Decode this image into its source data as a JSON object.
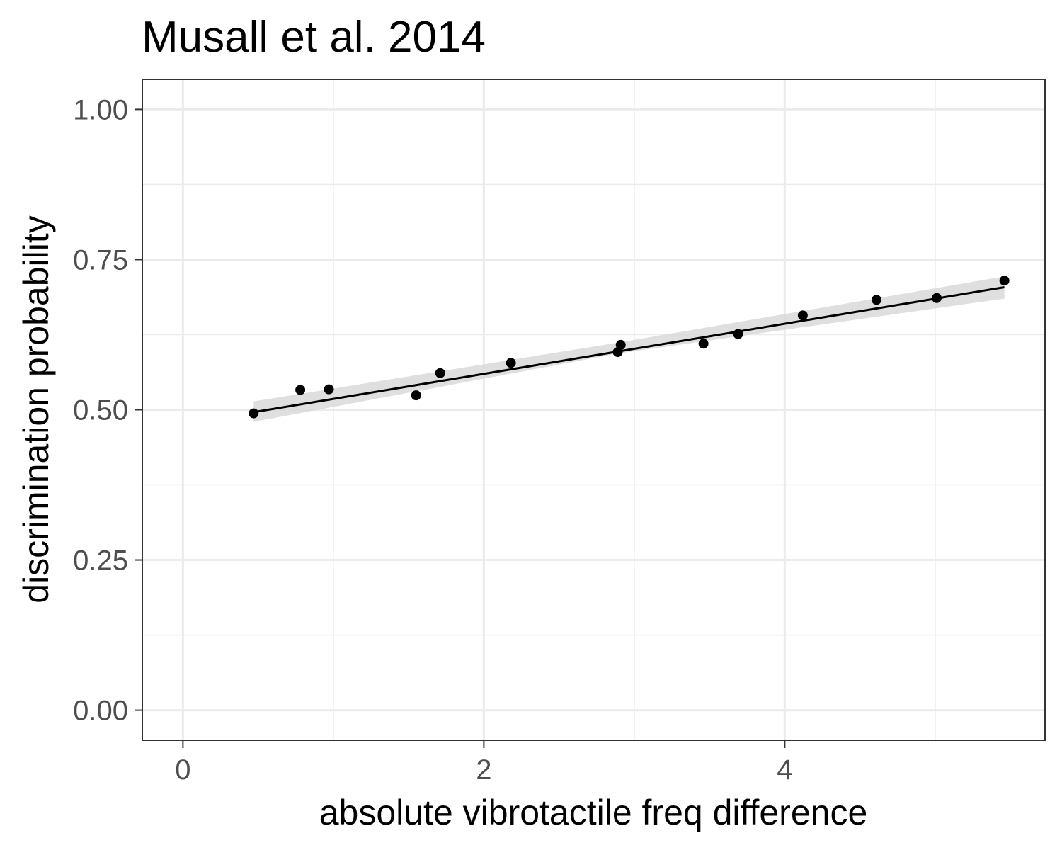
{
  "chart_data": {
    "type": "scatter",
    "title": "Musall et al. 2014",
    "xlabel": "absolute vibrotactile freq difference",
    "ylabel": "discrimination probability",
    "xlim": [
      -0.27,
      5.73
    ],
    "ylim": [
      -0.05,
      1.05
    ],
    "x_ticks": [
      {
        "value": 0,
        "label": "0"
      },
      {
        "value": 2,
        "label": "2"
      },
      {
        "value": 4,
        "label": "4"
      }
    ],
    "x_minor_ticks": [
      1,
      3,
      5
    ],
    "y_ticks": [
      {
        "value": 0,
        "label": "0.00"
      },
      {
        "value": 0.25,
        "label": "0.25"
      },
      {
        "value": 0.5,
        "label": "0.50"
      },
      {
        "value": 0.75,
        "label": "0.75"
      },
      {
        "value": 1,
        "label": "1.00"
      }
    ],
    "y_minor_ticks": [
      0.125,
      0.375,
      0.625,
      0.875
    ],
    "grid": true,
    "legend": "none",
    "points": [
      {
        "x": 0.47,
        "y": 0.494
      },
      {
        "x": 0.78,
        "y": 0.533
      },
      {
        "x": 0.97,
        "y": 0.534
      },
      {
        "x": 1.55,
        "y": 0.524
      },
      {
        "x": 1.71,
        "y": 0.561
      },
      {
        "x": 2.18,
        "y": 0.578
      },
      {
        "x": 2.89,
        "y": 0.596
      },
      {
        "x": 2.91,
        "y": 0.608
      },
      {
        "x": 3.46,
        "y": 0.61
      },
      {
        "x": 3.69,
        "y": 0.626
      },
      {
        "x": 4.12,
        "y": 0.657
      },
      {
        "x": 4.61,
        "y": 0.683
      },
      {
        "x": 5.01,
        "y": 0.686
      },
      {
        "x": 5.46,
        "y": 0.715
      }
    ],
    "fit_line": {
      "x": [
        0.47,
        5.46
      ],
      "y": [
        0.496,
        0.704
      ]
    },
    "confidence_band": {
      "x": [
        0.47,
        2.9,
        5.46
      ],
      "lower": [
        0.48,
        0.594,
        0.685
      ],
      "upper": [
        0.514,
        0.612,
        0.722
      ]
    },
    "colors": {
      "point": "#000000",
      "line": "#000000",
      "band": "#d9d9d9",
      "grid": "#ebebeb",
      "panel_border": "#333333",
      "tick_label": "#4d4d4d"
    }
  }
}
